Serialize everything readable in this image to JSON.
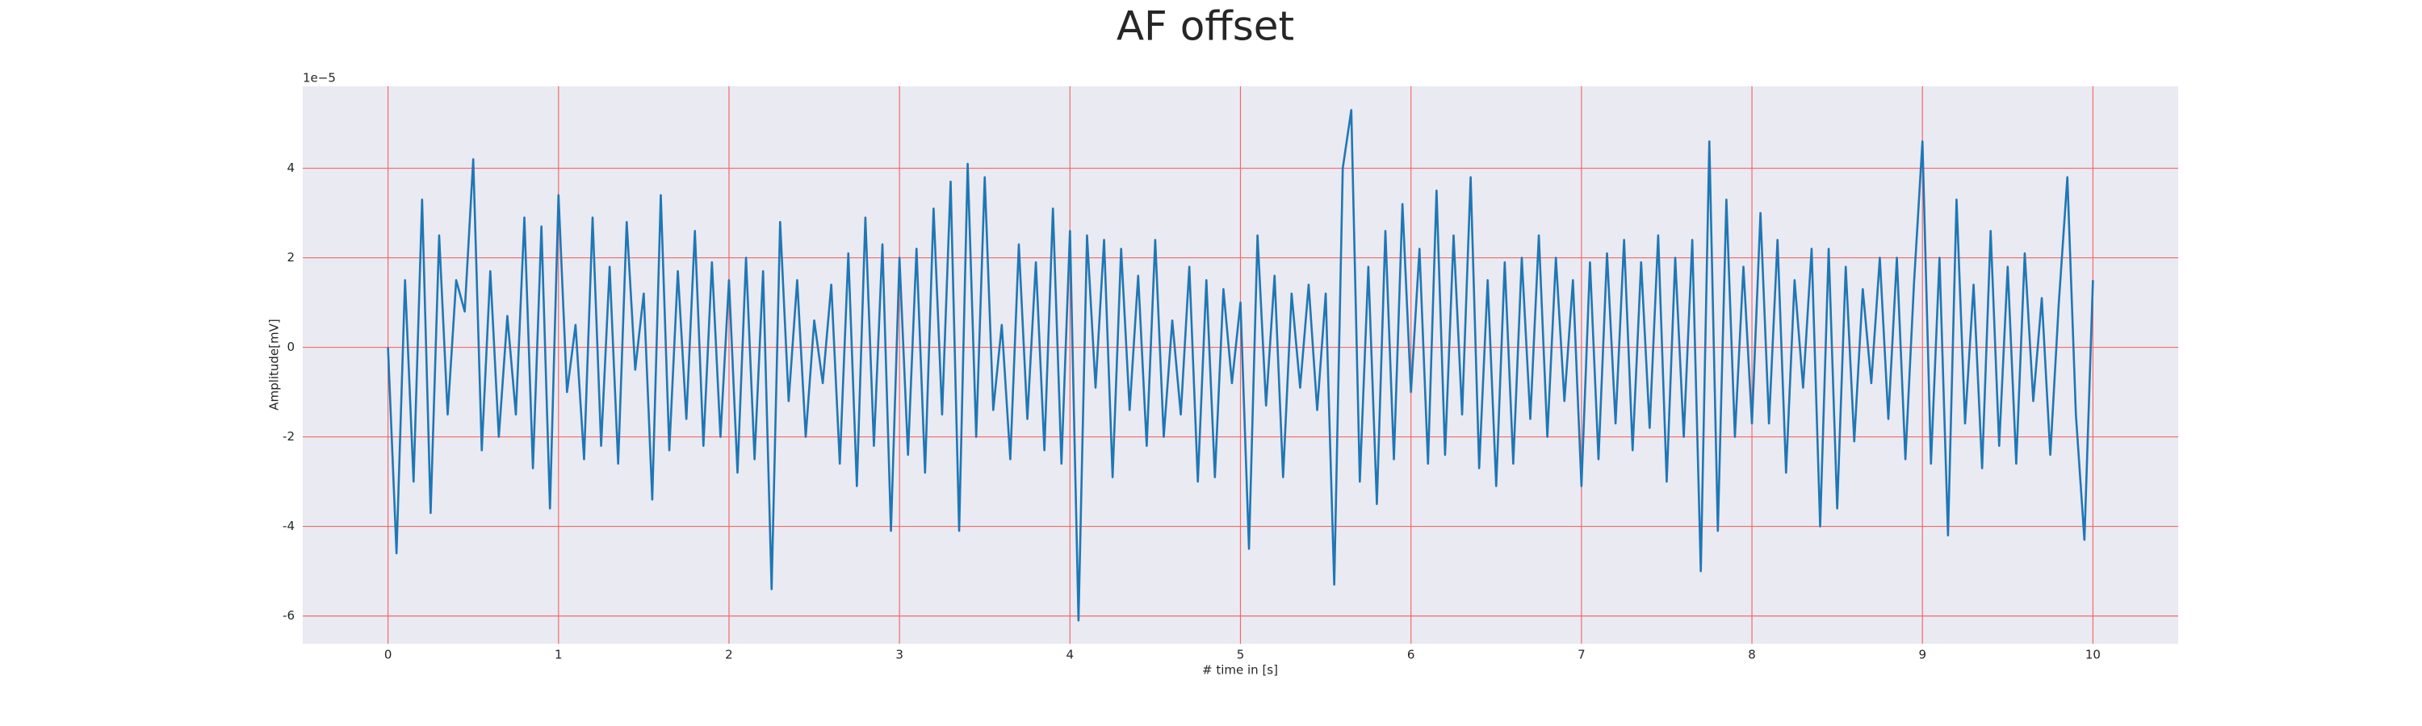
{
  "chart_data": {
    "type": "line",
    "title": "AF offset",
    "x_label": "# time in [s]",
    "y_label": "Amplitude[mV]",
    "y_offset_text": "1e−5",
    "x": [
      0,
      0.05,
      0.1,
      0.15,
      0.2,
      0.25,
      0.3,
      0.35,
      0.4,
      0.45,
      0.5,
      0.55,
      0.6,
      0.65,
      0.7,
      0.75,
      0.8,
      0.85,
      0.9,
      0.95,
      1,
      1.05,
      1.1,
      1.15,
      1.2,
      1.25,
      1.3,
      1.35,
      1.4,
      1.45,
      1.5,
      1.55,
      1.6,
      1.65,
      1.7,
      1.75,
      1.8,
      1.85,
      1.9,
      1.95,
      2,
      2.05,
      2.1,
      2.15,
      2.2,
      2.25,
      2.3,
      2.35,
      2.4,
      2.45,
      2.5,
      2.55,
      2.6,
      2.65,
      2.7,
      2.75,
      2.8,
      2.85,
      2.9,
      2.95,
      3,
      3.05,
      3.1,
      3.15,
      3.2,
      3.25,
      3.3,
      3.35,
      3.4,
      3.45,
      3.5,
      3.55,
      3.6,
      3.65,
      3.7,
      3.75,
      3.8,
      3.85,
      3.9,
      3.95,
      4,
      4.05,
      4.1,
      4.15,
      4.2,
      4.25,
      4.3,
      4.35,
      4.4,
      4.45,
      4.5,
      4.55,
      4.6,
      4.65,
      4.7,
      4.75,
      4.8,
      4.85,
      4.9,
      4.95,
      5,
      5.05,
      5.1,
      5.15,
      5.2,
      5.25,
      5.3,
      5.35,
      5.4,
      5.45,
      5.5,
      5.55,
      5.6,
      5.65,
      5.7,
      5.75,
      5.8,
      5.85,
      5.9,
      5.95,
      6,
      6.05,
      6.1,
      6.15,
      6.2,
      6.25,
      6.3,
      6.35,
      6.4,
      6.45,
      6.5,
      6.55,
      6.6,
      6.65,
      6.7,
      6.75,
      6.8,
      6.85,
      6.9,
      6.95,
      7,
      7.05,
      7.1,
      7.15,
      7.2,
      7.25,
      7.3,
      7.35,
      7.4,
      7.45,
      7.5,
      7.55,
      7.6,
      7.65,
      7.7,
      7.75,
      7.8,
      7.85,
      7.9,
      7.95,
      8,
      8.05,
      8.1,
      8.15,
      8.2,
      8.25,
      8.3,
      8.35,
      8.4,
      8.45,
      8.5,
      8.55,
      8.6,
      8.65,
      8.7,
      8.75,
      8.8,
      8.85,
      8.9,
      8.95,
      9,
      9.05,
      9.1,
      9.15,
      9.2,
      9.25,
      9.3,
      9.35,
      9.4,
      9.45,
      9.5,
      9.55,
      9.6,
      9.65,
      9.7,
      9.75,
      9.8,
      9.85,
      9.9,
      9.95,
      10
    ],
    "series": [
      {
        "color": "#1f77b4",
        "values": [
          0,
          -4.6,
          1.5,
          -3.0,
          3.3,
          -3.7,
          2.5,
          -1.5,
          1.5,
          0.8,
          4.2,
          -2.3,
          1.7,
          -2.0,
          0.7,
          -1.5,
          2.9,
          -2.7,
          2.7,
          -3.6,
          3.4,
          -1.0,
          0.5,
          -2.5,
          2.9,
          -2.2,
          1.8,
          -2.6,
          2.8,
          -0.5,
          1.2,
          -3.4,
          3.4,
          -2.3,
          1.7,
          -1.6,
          2.6,
          -2.2,
          1.9,
          -2.0,
          1.5,
          -2.8,
          2.0,
          -2.5,
          1.7,
          -5.4,
          2.8,
          -1.2,
          1.5,
          -2.0,
          0.6,
          -0.8,
          1.4,
          -2.6,
          2.1,
          -3.1,
          2.9,
          -2.2,
          2.3,
          -4.1,
          2.0,
          -2.4,
          2.2,
          -2.8,
          3.1,
          -1.5,
          3.7,
          -4.1,
          4.1,
          -2.0,
          3.8,
          -1.4,
          0.5,
          -2.5,
          2.3,
          -1.6,
          1.9,
          -2.3,
          3.1,
          -2.6,
          2.6,
          -6.1,
          2.5,
          -0.9,
          2.4,
          -2.9,
          2.2,
          -1.4,
          1.6,
          -2.2,
          2.4,
          -2.0,
          0.6,
          -1.5,
          1.8,
          -3.0,
          1.5,
          -2.9,
          1.3,
          -0.8,
          1.0,
          -4.5,
          2.5,
          -1.3,
          1.6,
          -2.9,
          1.2,
          -0.9,
          1.4,
          -1.4,
          1.2,
          -5.3,
          4.0,
          5.3,
          -3.0,
          1.8,
          -3.5,
          2.6,
          -2.5,
          3.2,
          -1.0,
          2.2,
          -2.6,
          3.5,
          -2.4,
          2.5,
          -1.5,
          3.8,
          -2.7,
          1.5,
          -3.1,
          1.9,
          -2.6,
          2.0,
          -1.6,
          2.5,
          -2.0,
          2.0,
          -1.2,
          1.5,
          -3.1,
          1.9,
          -2.5,
          2.1,
          -1.7,
          2.4,
          -2.3,
          1.9,
          -1.8,
          2.5,
          -3.0,
          2.0,
          -2.0,
          2.4,
          -5.0,
          4.6,
          -4.1,
          3.3,
          -2.0,
          1.8,
          -1.7,
          3.0,
          -1.7,
          2.4,
          -2.8,
          1.5,
          -0.9,
          2.2,
          -4.0,
          2.2,
          -3.6,
          1.8,
          -2.1,
          1.3,
          -0.8,
          2.0,
          -1.6,
          2.0,
          -2.5,
          1.4,
          4.6,
          -2.6,
          2.0,
          -4.2,
          3.3,
          -1.7,
          1.4,
          -2.7,
          2.6,
          -2.2,
          1.8,
          -2.6,
          2.1,
          -1.2,
          1.1,
          -2.4,
          1.0,
          3.8,
          -1.5,
          -4.3,
          1.5
        ]
      }
    ],
    "xlim": [
      -0.5,
      10.5
    ],
    "xticks": [
      0,
      1,
      2,
      3,
      4,
      5,
      6,
      7,
      8,
      9,
      10
    ],
    "ylim": [
      -6.62,
      5.83
    ],
    "yticks": [
      -6,
      -4,
      -2,
      0,
      2,
      4
    ],
    "grid": true
  }
}
